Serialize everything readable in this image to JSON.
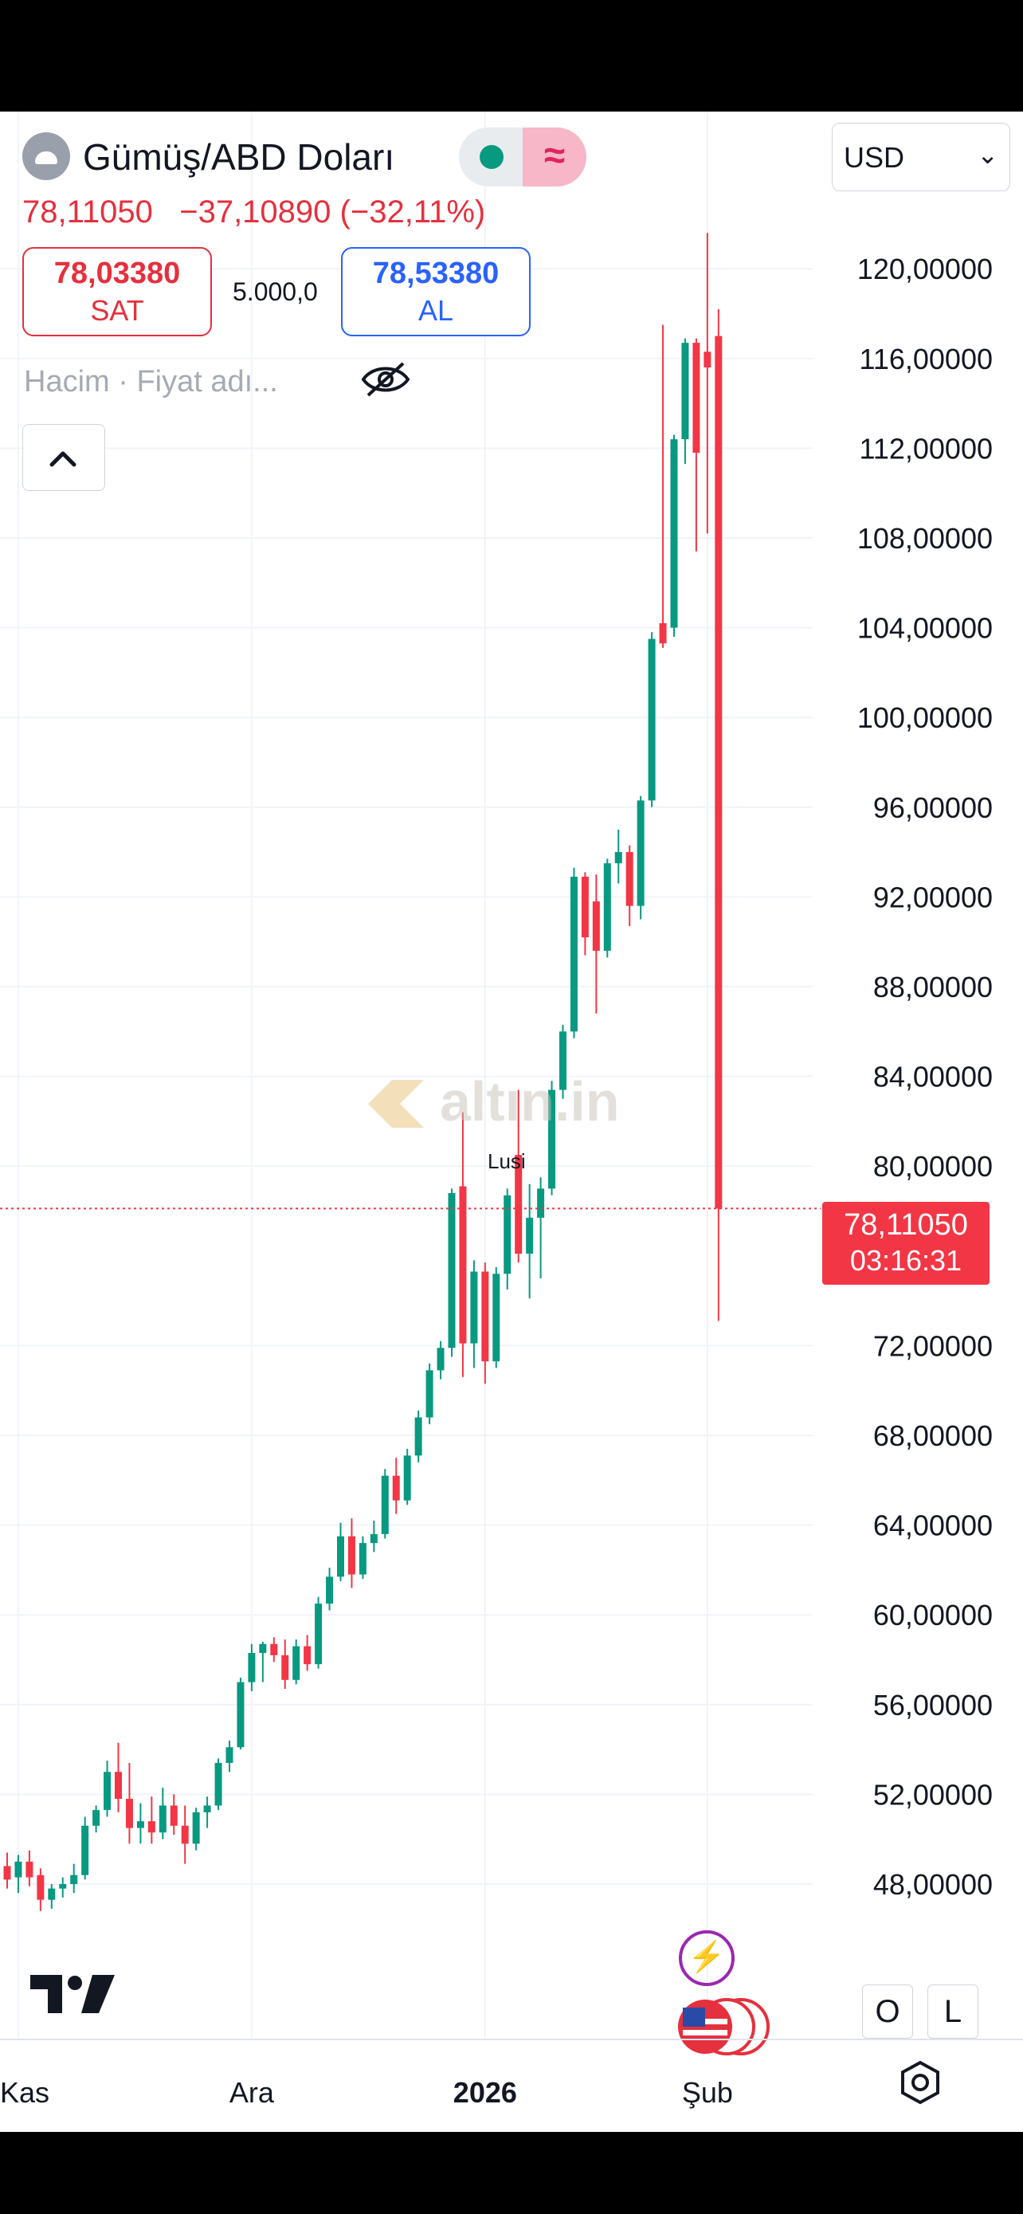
{
  "header": {
    "symbol": "Gümüş/ABD Doları",
    "last_price": "78,11050",
    "change": "−37,10890",
    "change_percent": "(−32,11%)",
    "sell_price": "78,03380",
    "sell_label": "SAT",
    "quantity": "5.000,0",
    "buy_price": "78,53380",
    "buy_label": "AL",
    "indicators": "Hacim · Fiyat adı...",
    "currency": "USD",
    "status_wave": "≈"
  },
  "overlays": {
    "watermark": "altın.in",
    "annotation": "Lusi",
    "price_label_value": "78,11050",
    "price_label_timer": "03:16:31",
    "flash_symbol": "⚡",
    "btn_o": "O",
    "btn_l": "L",
    "chevron": "⌄"
  },
  "colors": {
    "up": "#089981",
    "down": "#f23645",
    "text": "#131722",
    "grid": "#f0f3fa"
  },
  "chart_data": {
    "type": "candlestick",
    "y_axis": {
      "ticks": [
        48,
        52,
        56,
        60,
        64,
        68,
        72,
        80,
        84,
        88,
        92,
        96,
        100,
        104,
        108,
        112,
        116,
        120
      ],
      "tick_labels": [
        "48,00000",
        "52,00000",
        "56,00000",
        "60,00000",
        "64,00000",
        "68,00000",
        "72,00000",
        "80,00000",
        "84,00000",
        "88,00000",
        "92,00000",
        "96,00000",
        "100,00000",
        "104,00000",
        "108,00000",
        "112,00000",
        "116,00000",
        "120,00000"
      ],
      "position": "right"
    },
    "x_axis": {
      "labels": [
        {
          "text": "Kas",
          "candle": 1,
          "bold": false
        },
        {
          "text": "Ara",
          "candle": 22,
          "bold": false
        },
        {
          "text": "2026",
          "candle": 43,
          "bold": true
        },
        {
          "text": "Şub",
          "candle": 63,
          "bold": false
        }
      ]
    },
    "last_price": 78.1105,
    "candles": [
      {
        "o": 48.8,
        "h": 49.4,
        "l": 47.8,
        "c": 48.2
      },
      {
        "o": 48.3,
        "h": 49.3,
        "l": 47.6,
        "c": 49.0
      },
      {
        "o": 49.0,
        "h": 49.5,
        "l": 47.9,
        "c": 48.3
      },
      {
        "o": 48.4,
        "h": 48.7,
        "l": 46.8,
        "c": 47.3
      },
      {
        "o": 47.3,
        "h": 48.0,
        "l": 46.9,
        "c": 47.8
      },
      {
        "o": 47.8,
        "h": 48.3,
        "l": 47.4,
        "c": 48.0
      },
      {
        "o": 48.0,
        "h": 48.9,
        "l": 47.6,
        "c": 48.4
      },
      {
        "o": 48.4,
        "h": 51.0,
        "l": 48.2,
        "c": 50.6
      },
      {
        "o": 50.6,
        "h": 51.5,
        "l": 50.3,
        "c": 51.3
      },
      {
        "o": 51.3,
        "h": 53.5,
        "l": 51.0,
        "c": 53.0
      },
      {
        "o": 53.0,
        "h": 54.3,
        "l": 51.2,
        "c": 51.8
      },
      {
        "o": 51.8,
        "h": 53.4,
        "l": 49.8,
        "c": 50.5
      },
      {
        "o": 50.5,
        "h": 51.6,
        "l": 49.8,
        "c": 50.8
      },
      {
        "o": 50.8,
        "h": 51.9,
        "l": 49.8,
        "c": 50.3
      },
      {
        "o": 50.3,
        "h": 52.3,
        "l": 50.0,
        "c": 51.5
      },
      {
        "o": 51.5,
        "h": 52.0,
        "l": 50.2,
        "c": 50.6
      },
      {
        "o": 50.6,
        "h": 51.5,
        "l": 48.9,
        "c": 49.8
      },
      {
        "o": 49.8,
        "h": 51.4,
        "l": 49.5,
        "c": 51.2
      },
      {
        "o": 51.2,
        "h": 51.9,
        "l": 50.5,
        "c": 51.5
      },
      {
        "o": 51.5,
        "h": 53.6,
        "l": 51.3,
        "c": 53.4
      },
      {
        "o": 53.4,
        "h": 54.4,
        "l": 53.0,
        "c": 54.1
      },
      {
        "o": 54.1,
        "h": 57.2,
        "l": 54.0,
        "c": 57.0
      },
      {
        "o": 57.0,
        "h": 58.7,
        "l": 56.6,
        "c": 58.3
      },
      {
        "o": 58.3,
        "h": 58.8,
        "l": 57.0,
        "c": 58.7
      },
      {
        "o": 58.7,
        "h": 59.0,
        "l": 57.9,
        "c": 58.2
      },
      {
        "o": 58.2,
        "h": 58.9,
        "l": 56.7,
        "c": 57.1
      },
      {
        "o": 57.1,
        "h": 58.9,
        "l": 56.9,
        "c": 58.6
      },
      {
        "o": 58.6,
        "h": 59.1,
        "l": 57.5,
        "c": 57.8
      },
      {
        "o": 57.8,
        "h": 60.8,
        "l": 57.6,
        "c": 60.5
      },
      {
        "o": 60.5,
        "h": 62.1,
        "l": 60.2,
        "c": 61.7
      },
      {
        "o": 61.7,
        "h": 64.1,
        "l": 61.5,
        "c": 63.5
      },
      {
        "o": 63.5,
        "h": 64.3,
        "l": 61.2,
        "c": 61.8
      },
      {
        "o": 61.8,
        "h": 63.5,
        "l": 61.6,
        "c": 63.2
      },
      {
        "o": 63.2,
        "h": 64.2,
        "l": 62.8,
        "c": 63.6
      },
      {
        "o": 63.6,
        "h": 66.5,
        "l": 63.4,
        "c": 66.2
      },
      {
        "o": 66.2,
        "h": 67.0,
        "l": 64.5,
        "c": 65.1
      },
      {
        "o": 65.1,
        "h": 67.4,
        "l": 64.9,
        "c": 67.1
      },
      {
        "o": 67.1,
        "h": 69.1,
        "l": 66.8,
        "c": 68.8
      },
      {
        "o": 68.8,
        "h": 71.2,
        "l": 68.5,
        "c": 70.9
      },
      {
        "o": 70.9,
        "h": 72.2,
        "l": 70.5,
        "c": 71.9
      },
      {
        "o": 71.9,
        "h": 79.0,
        "l": 71.5,
        "c": 78.8
      },
      {
        "o": 79.1,
        "h": 82.4,
        "l": 70.6,
        "c": 72.1
      },
      {
        "o": 72.1,
        "h": 75.8,
        "l": 71.0,
        "c": 75.3
      },
      {
        "o": 75.3,
        "h": 75.7,
        "l": 70.3,
        "c": 71.3
      },
      {
        "o": 71.3,
        "h": 75.5,
        "l": 71.0,
        "c": 75.2
      },
      {
        "o": 75.2,
        "h": 79.0,
        "l": 74.5,
        "c": 78.7
      },
      {
        "o": 80.5,
        "h": 83.4,
        "l": 75.7,
        "c": 76.1
      },
      {
        "o": 76.1,
        "h": 79.2,
        "l": 74.1,
        "c": 77.7
      },
      {
        "o": 77.7,
        "h": 79.5,
        "l": 75.0,
        "c": 79.0
      },
      {
        "o": 79.0,
        "h": 83.8,
        "l": 78.7,
        "c": 83.4
      },
      {
        "o": 83.4,
        "h": 86.3,
        "l": 83.0,
        "c": 86.0
      },
      {
        "o": 86.0,
        "h": 93.3,
        "l": 85.7,
        "c": 92.9
      },
      {
        "o": 92.9,
        "h": 93.1,
        "l": 89.4,
        "c": 90.2
      },
      {
        "o": 91.8,
        "h": 93.0,
        "l": 86.8,
        "c": 89.6
      },
      {
        "o": 89.6,
        "h": 93.7,
        "l": 89.3,
        "c": 93.5
      },
      {
        "o": 93.5,
        "h": 95.0,
        "l": 92.6,
        "c": 94.0
      },
      {
        "o": 94.0,
        "h": 94.3,
        "l": 90.7,
        "c": 91.6
      },
      {
        "o": 91.6,
        "h": 96.5,
        "l": 91.0,
        "c": 96.3
      },
      {
        "o": 96.3,
        "h": 103.8,
        "l": 96.0,
        "c": 103.5
      },
      {
        "o": 104.2,
        "h": 117.5,
        "l": 103.1,
        "c": 103.3
      },
      {
        "o": 104.0,
        "h": 112.6,
        "l": 103.6,
        "c": 112.4
      },
      {
        "o": 112.4,
        "h": 116.9,
        "l": 111.3,
        "c": 116.7
      },
      {
        "o": 116.7,
        "h": 116.9,
        "l": 107.4,
        "c": 111.8
      },
      {
        "o": 116.3,
        "h": 121.6,
        "l": 108.2,
        "c": 115.6
      },
      {
        "o": 117.0,
        "h": 118.2,
        "l": 73.1,
        "c": 78.1105
      }
    ]
  }
}
